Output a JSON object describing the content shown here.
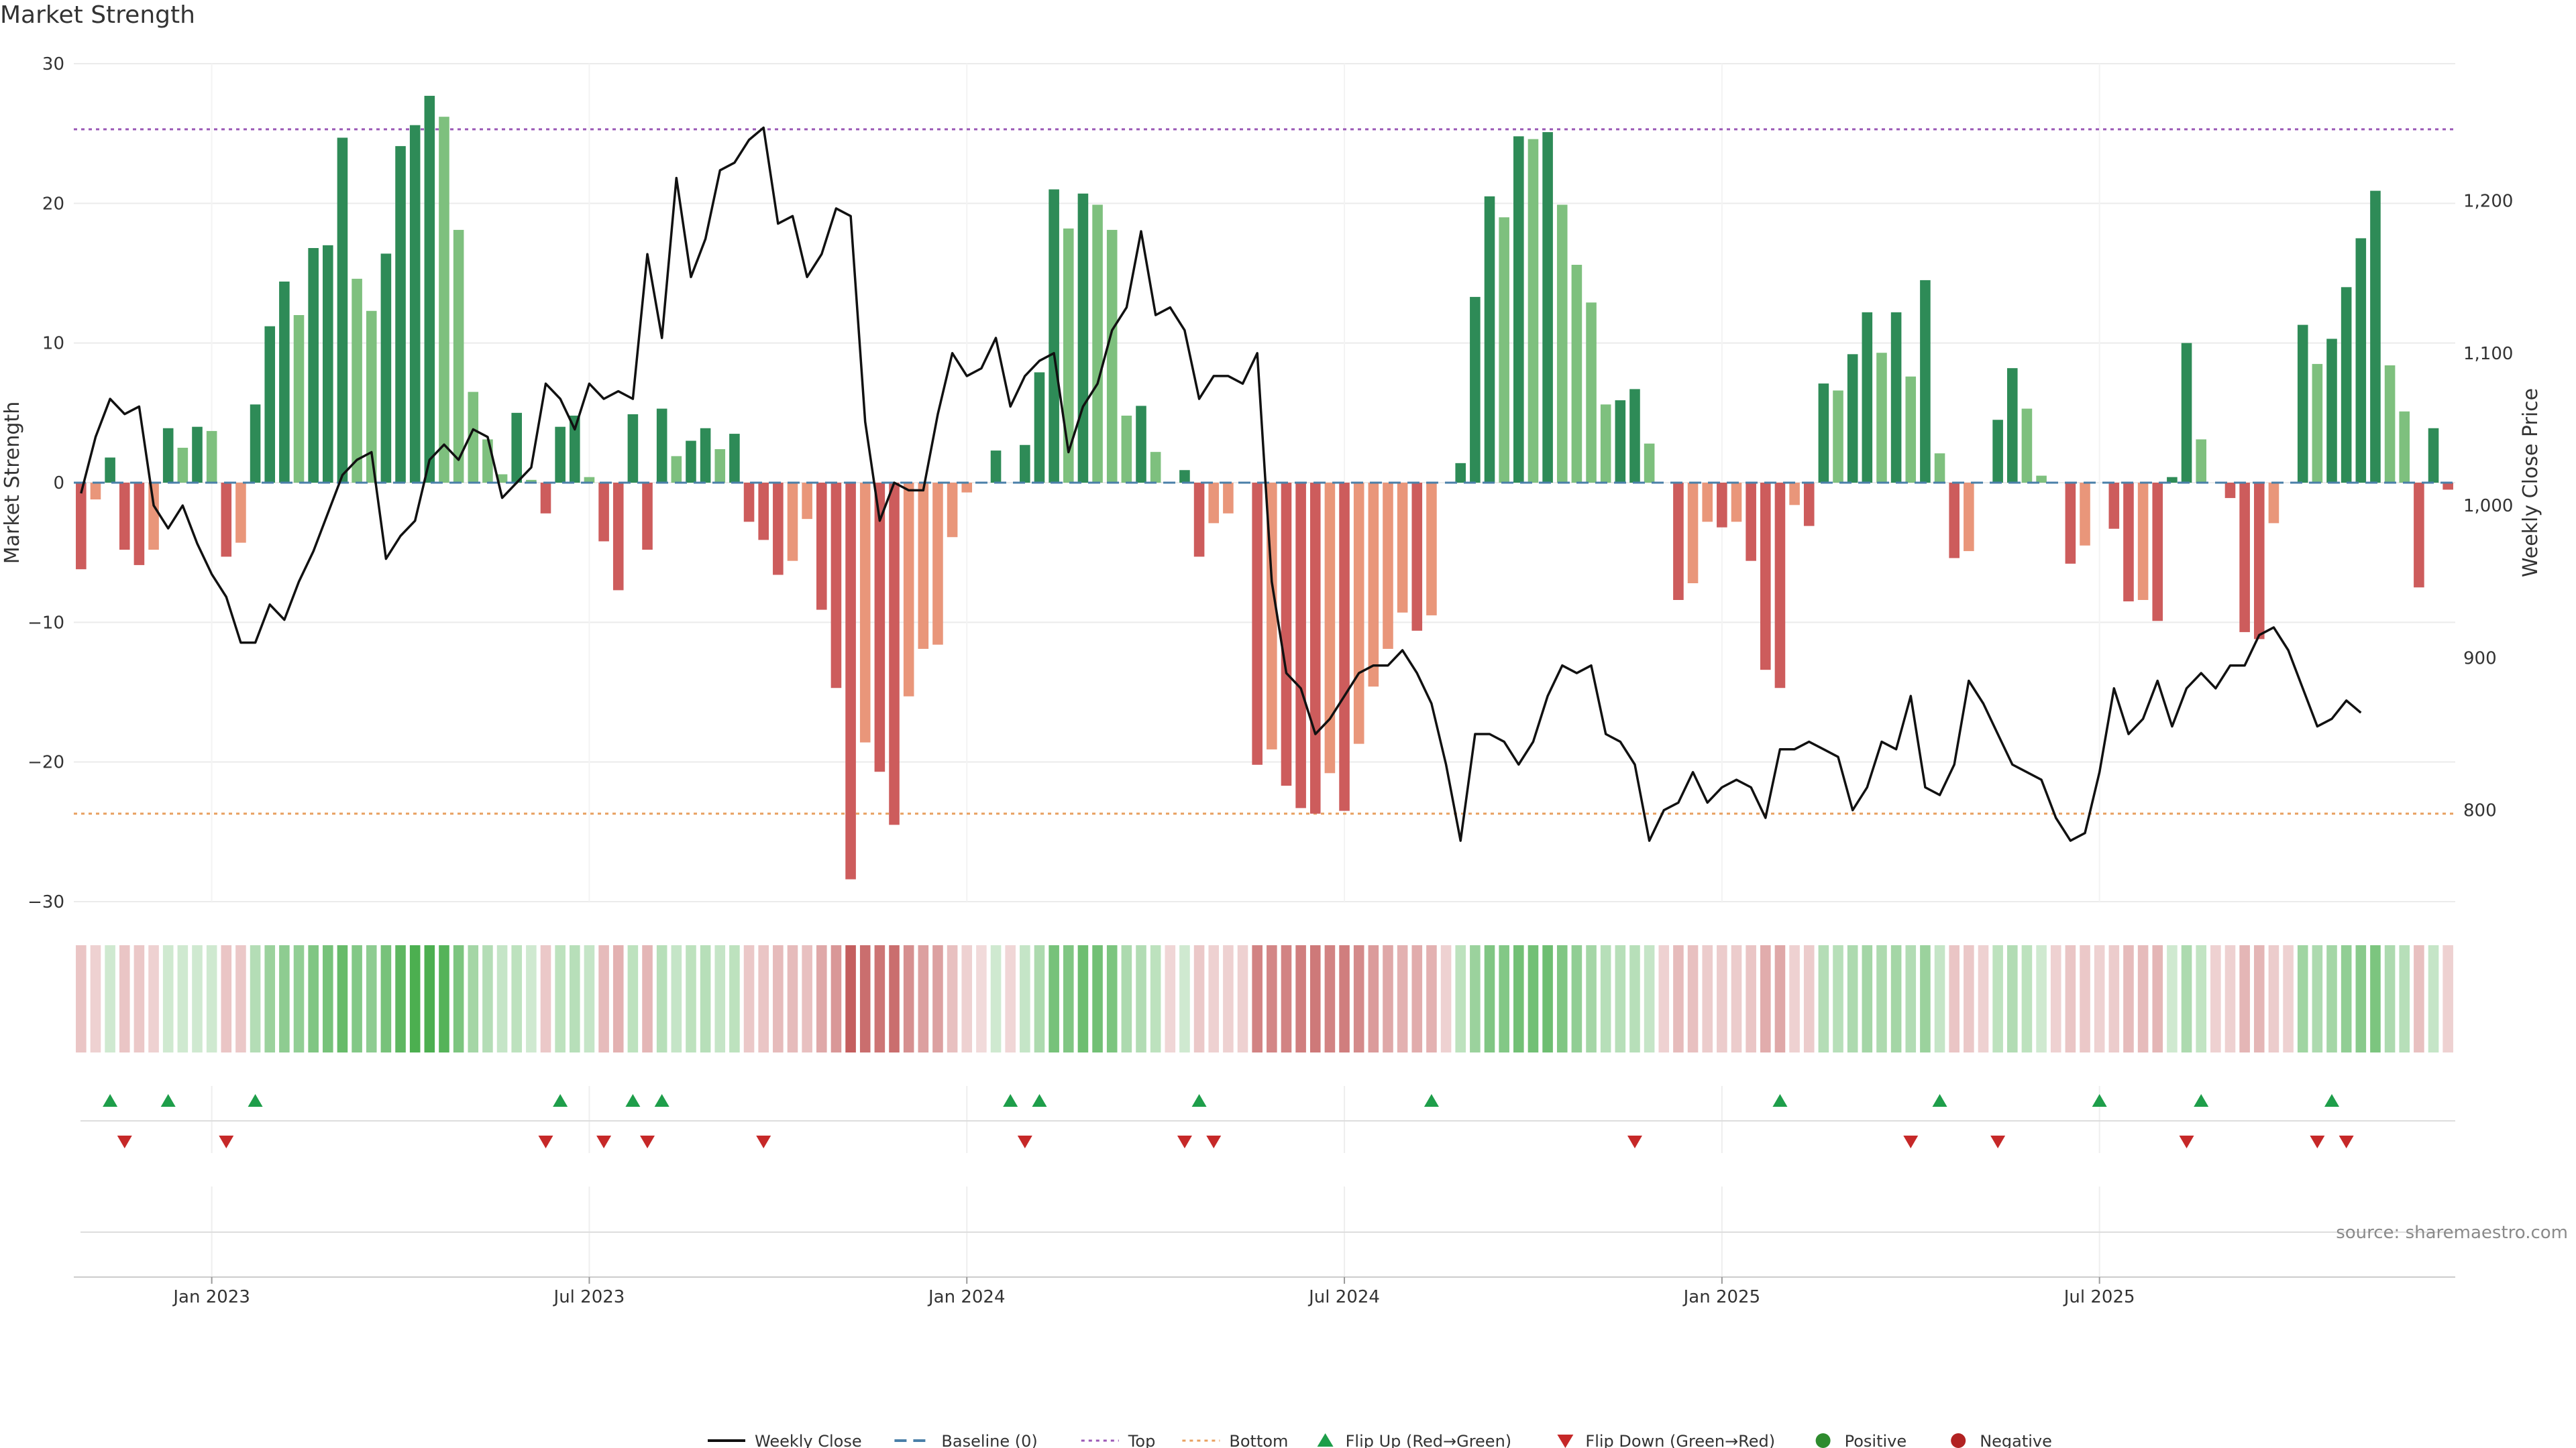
{
  "title": "Market Strength",
  "source": "source: sharemaestro.com",
  "colors": {
    "pos_dark": "#2e8b57",
    "pos_light": "#7ec07e",
    "neg_dark": "#cd5c5c",
    "neg_light": "#e9967a",
    "price_line": "#111111",
    "top_line": "#9b59b6",
    "bottom_line": "#e8a060",
    "baseline": "#4a7fa8",
    "flip_up": "#1e9e4a",
    "flip_down": "#c62828",
    "grid": "#ebebeb"
  },
  "chart_data": {
    "type": "bar+line",
    "title": "Market Strength",
    "ylabel_left": "Market Strength",
    "ylabel_right": "Weekly Close Price",
    "ylim_left": [
      -30,
      30
    ],
    "yticks_left": [
      "30",
      "20",
      "10",
      "0",
      "−10",
      "−20",
      "−30"
    ],
    "ylim_right": [
      740,
      1290
    ],
    "yticks_right": [
      {
        "value": 1200,
        "label": "1,200"
      },
      {
        "value": 1100,
        "label": "1,100"
      },
      {
        "value": 1000,
        "label": "1,000"
      },
      {
        "value": 900,
        "label": "900"
      },
      {
        "value": 800,
        "label": "800"
      }
    ],
    "top_threshold": 25.3,
    "bottom_threshold": -23.7,
    "baseline": 0,
    "x_ticks": [
      {
        "index": 9,
        "label": "Jan 2023"
      },
      {
        "index": 35,
        "label": "Jul 2023"
      },
      {
        "index": 61,
        "label": "Jan 2024"
      },
      {
        "index": 87,
        "label": "Jul 2024"
      },
      {
        "index": 113,
        "label": "Jan 2025"
      },
      {
        "index": 139,
        "label": "Jul 2025"
      }
    ],
    "strength": [
      -6.2,
      -1.2,
      1.8,
      -4.8,
      -5.9,
      -4.8,
      3.9,
      2.5,
      4.0,
      3.7,
      -5.3,
      -4.3,
      5.6,
      11.2,
      14.4,
      12.0,
      16.8,
      17.0,
      24.7,
      14.6,
      12.3,
      16.4,
      24.1,
      25.6,
      27.7,
      26.2,
      18.1,
      6.5,
      3.1,
      0.6,
      5.0,
      0.2,
      -2.2,
      4.0,
      4.8,
      0.4,
      -4.2,
      -7.7,
      4.9,
      -4.8,
      5.3,
      1.9,
      3.0,
      3.9,
      2.4,
      3.5,
      -2.8,
      -4.1,
      -6.6,
      -5.6,
      -2.6,
      -9.1,
      -14.7,
      -28.4,
      -18.6,
      -20.7,
      -24.5,
      -15.3,
      -11.9,
      -11.6,
      -3.9,
      -0.7,
      0,
      2.3,
      0,
      2.7,
      7.9,
      21.0,
      18.2,
      20.7,
      19.9,
      18.1,
      4.8,
      5.5,
      2.2,
      0,
      0.9,
      -5.3,
      -2.9,
      -2.2,
      0,
      -20.2,
      -19.1,
      -21.7,
      -23.3,
      -23.7,
      -20.8,
      -23.5,
      -18.7,
      -14.6,
      -11.9,
      -9.3,
      -10.6,
      -9.5,
      0,
      1.4,
      13.3,
      20.5,
      19.0,
      24.8,
      24.6,
      25.1,
      19.9,
      15.6,
      12.9,
      5.6,
      5.9,
      6.7,
      2.8,
      0,
      -8.4,
      -7.2,
      -2.8,
      -3.2,
      -2.8,
      -5.6,
      -13.4,
      -14.7,
      -1.6,
      -3.1,
      7.1,
      6.6,
      9.2,
      12.2,
      9.3,
      12.2,
      7.6,
      14.5,
      2.1,
      -5.4,
      -4.9,
      0,
      4.5,
      8.2,
      5.3,
      0.5,
      0,
      -5.8,
      -4.5,
      0,
      -3.3,
      -8.5,
      -8.4,
      -9.9,
      0.4,
      10.0,
      3.1,
      0,
      -1.1,
      -10.7,
      -11.2,
      -2.9,
      0,
      11.3,
      8.5,
      10.3,
      14.0,
      17.5,
      20.9,
      8.4,
      5.1,
      -7.5,
      3.9,
      -0.5
    ],
    "close": [
      1008,
      1045,
      1070,
      1060,
      1065,
      1000,
      985,
      1000,
      975,
      955,
      940,
      910,
      910,
      935,
      925,
      950,
      970,
      995,
      1020,
      1030,
      1035,
      965,
      980,
      990,
      1030,
      1040,
      1030,
      1050,
      1045,
      1005,
      1015,
      1025,
      1080,
      1070,
      1050,
      1080,
      1070,
      1075,
      1070,
      1165,
      1110,
      1215,
      1150,
      1175,
      1220,
      1225,
      1240,
      1248,
      1185,
      1190,
      1150,
      1165,
      1195,
      1190,
      1055,
      990,
      1015,
      1010,
      1010,
      1060,
      1100,
      1085,
      1090,
      1110,
      1065,
      1085,
      1095,
      1100,
      1035,
      1065,
      1080,
      1115,
      1130,
      1180,
      1125,
      1130,
      1115,
      1070,
      1085,
      1085,
      1080,
      1100,
      950,
      890,
      880,
      850,
      860,
      875,
      890,
      895,
      895,
      905,
      890,
      870,
      830,
      780,
      850,
      850,
      845,
      830,
      845,
      875,
      895,
      890,
      895,
      850,
      845,
      830,
      780,
      800,
      805,
      825,
      805,
      815,
      820,
      815,
      795,
      840,
      840,
      845,
      840,
      835,
      800,
      815,
      845,
      840,
      875,
      815,
      810,
      830,
      885,
      870,
      850,
      830,
      825,
      820,
      795,
      780,
      785,
      825,
      880,
      850,
      860,
      885,
      855,
      880,
      890,
      880,
      895,
      895,
      915,
      920,
      905,
      880,
      855,
      860,
      872,
      864
    ]
  },
  "heatmap": {
    "intensity": [
      -0.32,
      -0.25,
      -0.25,
      -0.32,
      -0.3,
      -0.25,
      -0.25,
      -0.25,
      -0.25,
      -0.25,
      -0.32,
      -0.3,
      -0.4,
      -0.55,
      -0.62,
      -0.6,
      -0.7,
      -0.75,
      -0.85,
      -0.68,
      -0.62,
      -0.75,
      -0.9,
      -1.0,
      -1.0,
      -0.95,
      -0.72,
      -0.5,
      -0.4,
      -0.3,
      -0.35,
      -0.25,
      -0.3,
      -0.35,
      -0.38,
      -0.3,
      -0.38,
      -0.45,
      -0.35,
      -0.42,
      -0.38,
      -0.3,
      -0.35,
      -0.38,
      -0.3,
      -0.35,
      -0.3,
      -0.32,
      -0.38,
      -0.38,
      -0.35,
      -0.5,
      -0.6,
      -0.95,
      -0.85,
      -0.8,
      -0.85,
      -0.65,
      -0.55,
      -0.55,
      -0.35,
      -0.25,
      -0.2,
      -0.25,
      -0.22,
      -0.3,
      -0.45,
      -0.75,
      -0.7,
      -0.8,
      -0.78,
      -0.72,
      -0.45,
      -0.42,
      -0.35,
      -0.22,
      -0.25,
      -0.3,
      -0.25,
      -0.25,
      -0.25,
      -0.72,
      -0.7,
      -0.72,
      -0.75,
      -0.78,
      -0.72,
      -0.75,
      -0.68,
      -0.58,
      -0.5,
      -0.45,
      -0.48,
      -0.45,
      -0.25,
      -0.35,
      -0.55,
      -0.7,
      -0.68,
      -0.78,
      -0.78,
      -0.8,
      -0.7,
      -0.6,
      -0.5,
      -0.38,
      -0.38,
      -0.38,
      -0.3,
      -0.25,
      -0.38,
      -0.35,
      -0.28,
      -0.28,
      -0.28,
      -0.32,
      -0.48,
      -0.5,
      -0.25,
      -0.28,
      -0.4,
      -0.38,
      -0.45,
      -0.5,
      -0.45,
      -0.5,
      -0.42,
      -0.55,
      -0.3,
      -0.32,
      -0.3,
      -0.25,
      -0.35,
      -0.42,
      -0.35,
      -0.25,
      -0.25,
      -0.32,
      -0.3,
      -0.25,
      -0.28,
      -0.38,
      -0.38,
      -0.42,
      -0.25,
      -0.45,
      -0.32,
      -0.25,
      -0.25,
      -0.42,
      -0.42,
      -0.28,
      -0.25,
      -0.52,
      -0.45,
      -0.5,
      -0.6,
      -0.65,
      -0.72,
      -0.45,
      -0.38,
      -0.35,
      -0.3,
      -0.25
    ]
  },
  "flips": {
    "up": [
      2,
      6,
      12,
      33,
      38,
      40,
      64,
      66,
      77,
      93,
      117,
      128,
      139,
      146,
      155
    ],
    "down": [
      3,
      10,
      32,
      36,
      39,
      47,
      65,
      76,
      78,
      107,
      126,
      132,
      145,
      154,
      156
    ]
  },
  "legend": [
    {
      "key": "weekly_close",
      "label": "Weekly Close",
      "kind": "line",
      "color": "#111111"
    },
    {
      "key": "baseline",
      "label": "Baseline (0)",
      "kind": "dashed",
      "color": "#4a7fa8"
    },
    {
      "key": "top",
      "label": "Top",
      "kind": "dotted",
      "color": "#9b59b6"
    },
    {
      "key": "bottom",
      "label": "Bottom",
      "kind": "dotted",
      "color": "#e8a060"
    },
    {
      "key": "flip_up",
      "label": "Flip Up (Red→Green)",
      "kind": "tri-up",
      "color": "#1e9e4a"
    },
    {
      "key": "flip_down",
      "label": "Flip Down (Green→Red)",
      "kind": "tri-down",
      "color": "#c62828"
    },
    {
      "key": "positive",
      "label": "Positive",
      "kind": "dot",
      "color": "#2e8b2e"
    },
    {
      "key": "negative",
      "label": "Negative",
      "kind": "dot",
      "color": "#b22222"
    }
  ]
}
